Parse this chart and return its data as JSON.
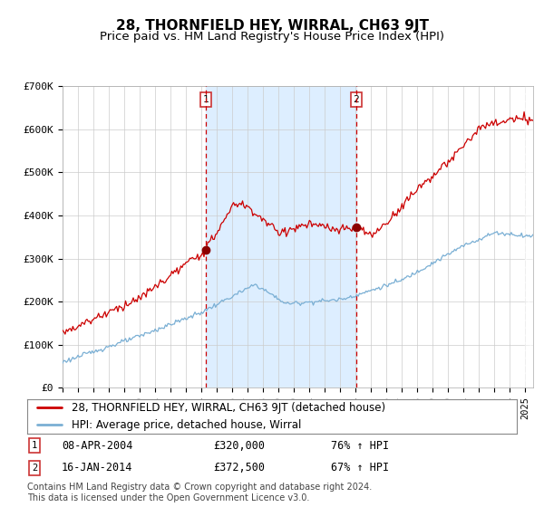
{
  "title": "28, THORNFIELD HEY, WIRRAL, CH63 9JT",
  "subtitle": "Price paid vs. HM Land Registry's House Price Index (HPI)",
  "red_line_color": "#cc0000",
  "blue_line_color": "#7aafd4",
  "background_color": "#ffffff",
  "plot_bg_color": "#ffffff",
  "shaded_region_color": "#ddeeff",
  "grid_color": "#cccccc",
  "sale1_date": 2004.27,
  "sale1_price": 320000,
  "sale1_label": "08-APR-2004",
  "sale1_amount": "£320,000",
  "sale1_hpi": "76% ↑ HPI",
  "sale2_date": 2014.04,
  "sale2_price": 372500,
  "sale2_label": "16-JAN-2014",
  "sale2_amount": "£372,500",
  "sale2_hpi": "67% ↑ HPI",
  "legend_red_label": "28, THORNFIELD HEY, WIRRAL, CH63 9JT (detached house)",
  "legend_blue_label": "HPI: Average price, detached house, Wirral",
  "footnote": "Contains HM Land Registry data © Crown copyright and database right 2024.\nThis data is licensed under the Open Government Licence v3.0.",
  "xmin": 1995.0,
  "xmax": 2025.5,
  "ylim": [
    0,
    700000
  ],
  "yticks": [
    0,
    100000,
    200000,
    300000,
    400000,
    500000,
    600000,
    700000
  ],
  "ytick_labels": [
    "£0",
    "£100K",
    "£200K",
    "£300K",
    "£400K",
    "£500K",
    "£600K",
    "£700K"
  ],
  "title_fontsize": 11,
  "subtitle_fontsize": 9.5,
  "tick_fontsize": 8,
  "legend_fontsize": 8.5,
  "footnote_fontsize": 7
}
